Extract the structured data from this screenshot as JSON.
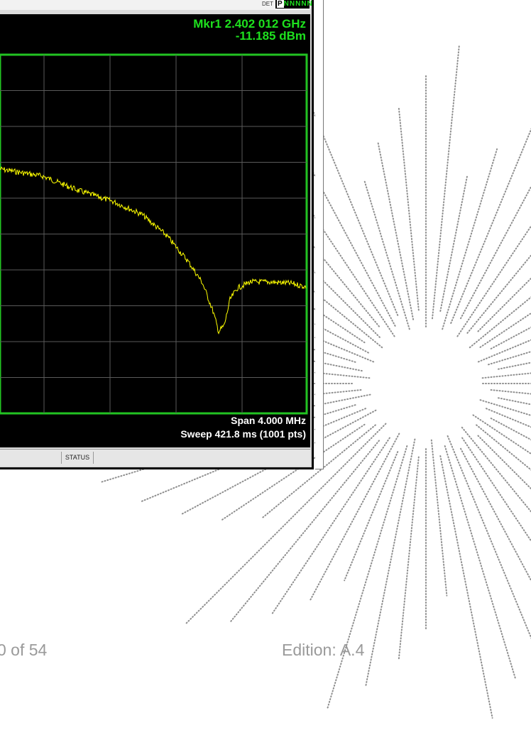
{
  "detector": {
    "label": "DET",
    "flags": "P",
    "flags_rest": "NNNNN"
  },
  "marker": {
    "line1": "Mkr1 2.402 012 GHz",
    "line2": "-11.185 dBm"
  },
  "readout": {
    "span": "Span 4.000 MHz",
    "sweep": "Sweep  421.8 ms (1001 pts)"
  },
  "status_bar": {
    "status_label": "STATUS"
  },
  "footer": {
    "page": "0 of 54",
    "edition": "Edition: A.4"
  },
  "colors": {
    "trace": "#ffff00",
    "graticule_border": "#22c322",
    "grid": "#5a5a5a",
    "marker_text": "#1ee11e",
    "footer_text": "#9a9a9a"
  }
}
